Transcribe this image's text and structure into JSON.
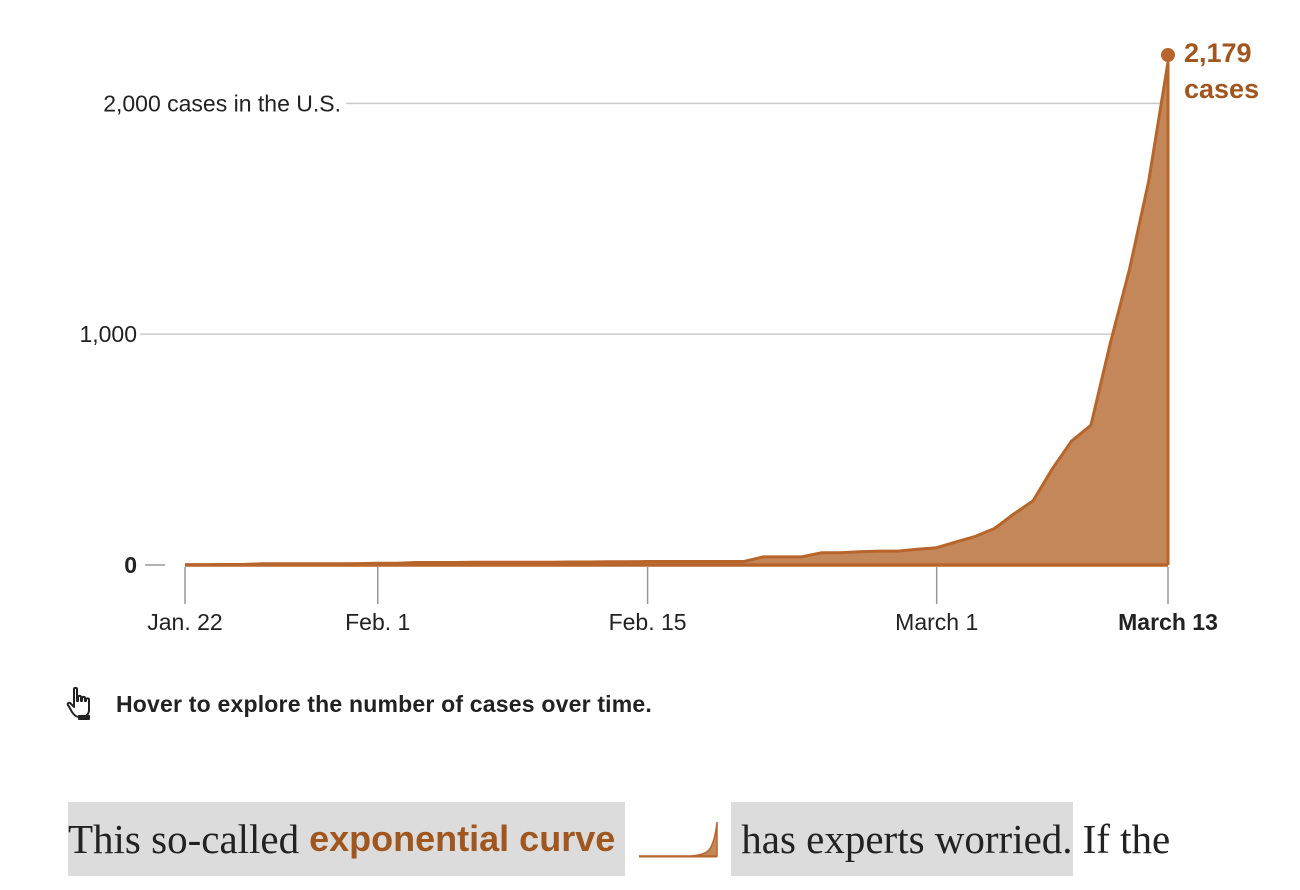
{
  "chart_data": {
    "type": "area",
    "y_axis": {
      "ticks": [
        {
          "value": 0,
          "label": "0",
          "bold": true
        },
        {
          "value": 1000,
          "label": "1,000",
          "bold": false
        },
        {
          "value": 2000,
          "label": "2,000 cases in the U.S.",
          "bold": false
        }
      ],
      "ylim": [
        0,
        2179
      ]
    },
    "x_axis": {
      "ticks": [
        {
          "day": 0,
          "label": "Jan. 22",
          "bold": false
        },
        {
          "day": 10,
          "label": "Feb. 1",
          "bold": false
        },
        {
          "day": 24,
          "label": "Feb. 15",
          "bold": false
        },
        {
          "day": 39,
          "label": "March 1",
          "bold": false
        },
        {
          "day": 51,
          "label": "March 13",
          "bold": true
        }
      ],
      "xlim": [
        0,
        51
      ]
    },
    "series": [
      {
        "x": [
          0,
          1,
          2,
          3,
          4,
          5,
          6,
          7,
          8,
          9,
          10,
          11,
          12,
          13,
          14,
          15,
          16,
          17,
          18,
          19,
          20,
          21,
          22,
          23,
          24,
          25,
          26,
          27,
          28,
          29,
          30,
          31,
          32,
          33,
          34,
          35,
          36,
          37,
          38,
          39,
          40,
          41,
          42,
          43,
          44,
          45,
          46,
          47,
          48,
          49,
          50,
          51
        ],
        "values": [
          1,
          1,
          2,
          2,
          5,
          5,
          5,
          5,
          5,
          6,
          8,
          8,
          11,
          11,
          11,
          12,
          12,
          12,
          12,
          12,
          13,
          13,
          14,
          14,
          15,
          15,
          15,
          15,
          15,
          15,
          35,
          35,
          35,
          53,
          53,
          57,
          60,
          60,
          68,
          75,
          100,
          124,
          158,
          221,
          278,
          417,
          537,
          605,
          959,
          1281,
          1663,
          2179
        ]
      }
    ],
    "end_label": {
      "value": "2,179",
      "unit": "cases"
    },
    "grid": true,
    "colors": {
      "fill": "#c4875a",
      "line": "#b7652a",
      "label": "#a0561f",
      "grid": "#cccccc",
      "axis": "#999999"
    }
  },
  "hint": {
    "icon": "pointing-hand-icon",
    "text": "Hover to explore the number of cases over time."
  },
  "paragraph": {
    "before": "This so-called",
    "term": "exponential curve",
    "after": "has experts worried.",
    "tail": "If the",
    "sparkline_icon": "exponential-curve-sparkline-icon"
  }
}
